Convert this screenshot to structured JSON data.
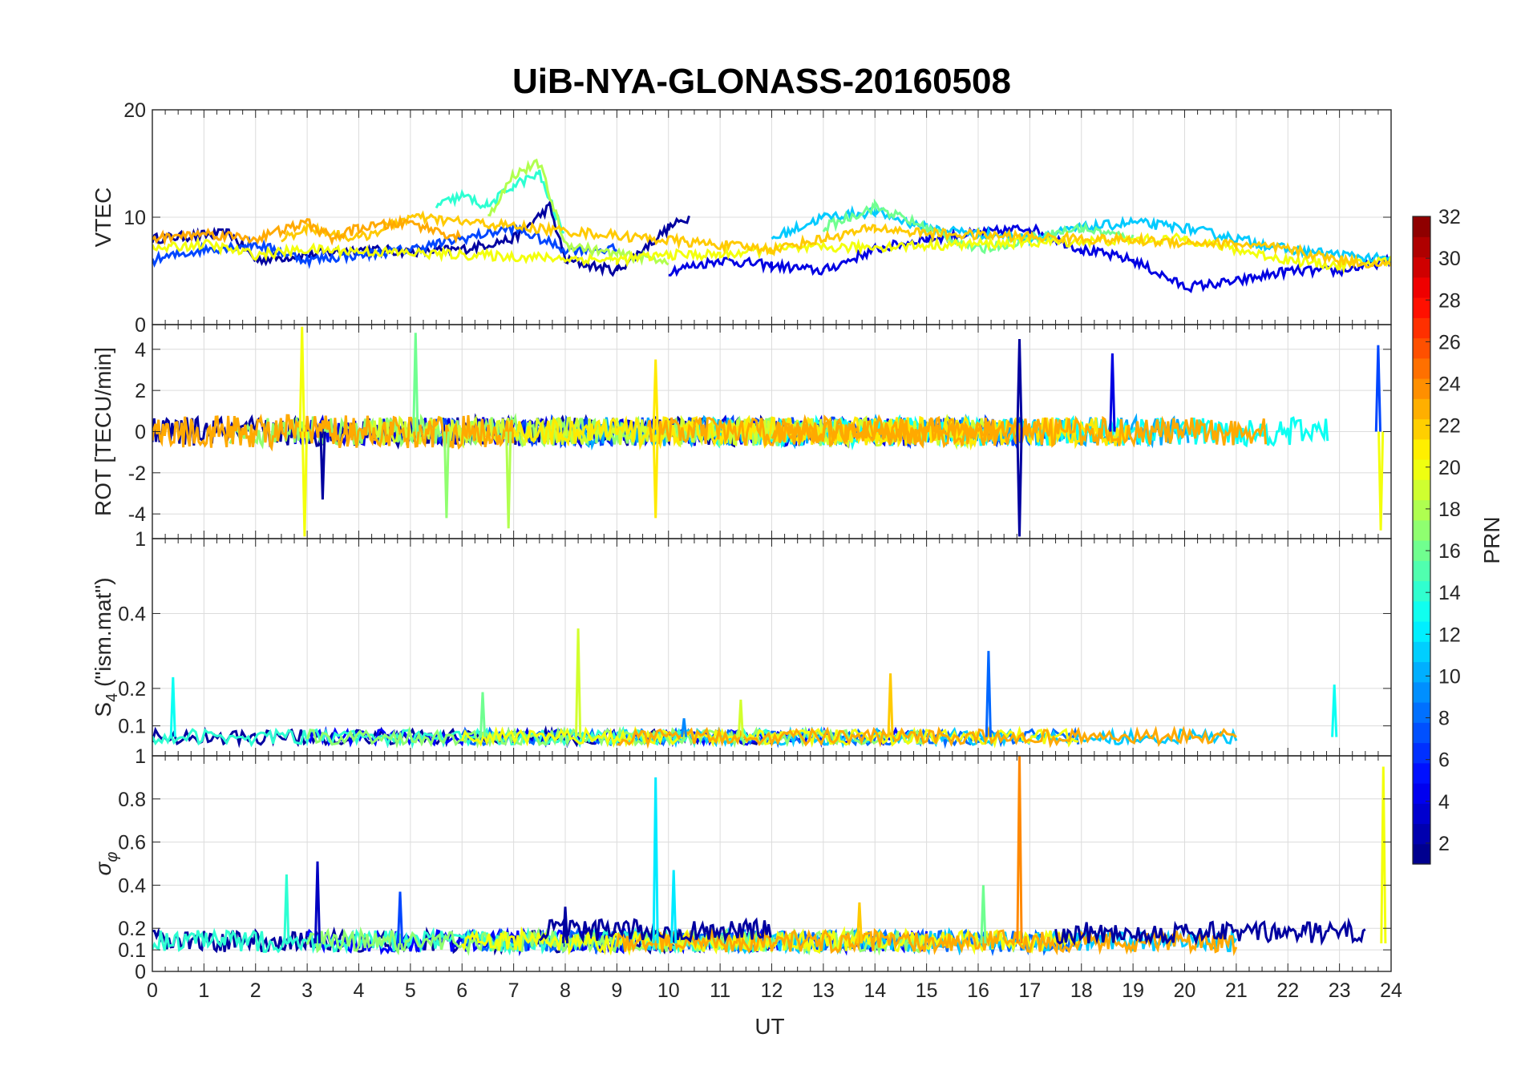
{
  "chart_data": {
    "type": "line",
    "title": "UiB-NYA-GLONASS-20160508",
    "xlabel": "UT",
    "x_ticks": [
      0,
      1,
      2,
      3,
      4,
      5,
      6,
      7,
      8,
      9,
      10,
      11,
      12,
      13,
      14,
      15,
      16,
      17,
      18,
      19,
      20,
      21,
      22,
      23,
      24
    ],
    "xlim": [
      0,
      24
    ],
    "grid": true,
    "colorbar": {
      "label": "PRN",
      "colormap": "jet",
      "range": [
        1,
        32
      ],
      "ticks": [
        2,
        4,
        6,
        8,
        10,
        12,
        14,
        16,
        18,
        20,
        22,
        24,
        26,
        28,
        30,
        32
      ]
    },
    "panels": [
      {
        "id": "vtec",
        "ylabel": "VTEC",
        "ylim": [
          0,
          20
        ],
        "yticks": [
          0,
          10,
          20
        ],
        "typical_range": [
          3,
          15
        ],
        "series": [
          {
            "prn": 2,
            "x": [
              0,
              1.5,
              2,
              3,
              4,
              5,
              6,
              7,
              7.7,
              8,
              9,
              10,
              10.4
            ],
            "y": [
              8,
              8.5,
              6,
              6.5,
              7,
              6.8,
              7,
              8,
              11,
              6,
              5,
              9,
              10
            ]
          },
          {
            "prn": 4,
            "x": [
              10,
              11,
              12,
              13,
              14,
              15,
              16,
              17,
              18,
              19,
              20,
              21,
              22,
              23,
              24
            ],
            "y": [
              5,
              6,
              5.5,
              5,
              7,
              8,
              8.5,
              9,
              7,
              6,
              3.5,
              4,
              5,
              5,
              6
            ]
          },
          {
            "prn": 7,
            "x": [
              0,
              1,
              2,
              3,
              4,
              5,
              6,
              7,
              8,
              9
            ],
            "y": [
              6,
              7,
              7.5,
              6,
              6.5,
              7,
              8,
              9,
              7,
              7
            ]
          },
          {
            "prn": 11,
            "x": [
              12,
              13,
              14,
              15,
              16,
              17,
              18,
              19,
              20,
              21,
              22,
              23,
              24
            ],
            "y": [
              8,
              10,
              10.5,
              9,
              8.5,
              8,
              9,
              9.5,
              9,
              8,
              7,
              6.5,
              6
            ]
          },
          {
            "prn": 14,
            "x": [
              5.5,
              6,
              6.5,
              7,
              7.5,
              8
            ],
            "y": [
              11,
              12,
              11,
              13,
              14,
              8
            ]
          },
          {
            "prn": 16,
            "x": [
              13,
              14,
              15,
              16,
              17,
              18,
              19
            ],
            "y": [
              9,
              11,
              9,
              7,
              8,
              9,
              8
            ]
          },
          {
            "prn": 18,
            "x": [
              6.5,
              7,
              7.5,
              7.7,
              8,
              9,
              10
            ],
            "y": [
              10,
              14,
              15,
              12,
              7.5,
              6.5,
              6
            ]
          },
          {
            "prn": 20,
            "x": [
              0,
              1,
              2,
              3,
              9,
              10,
              11,
              12,
              20,
              21,
              22,
              23,
              24
            ],
            "y": [
              7,
              7.5,
              6.5,
              7,
              6,
              6.5,
              6.5,
              7,
              8,
              7,
              6,
              5.5,
              6
            ]
          },
          {
            "prn": 22,
            "x": [
              2.5,
              3,
              4,
              5,
              12,
              13,
              14,
              15,
              21,
              22,
              23,
              24
            ],
            "y": [
              8,
              9,
              8,
              10,
              7,
              8,
              9,
              8.5,
              7.5,
              7,
              6,
              5.5
            ]
          },
          {
            "prn": 23,
            "x": [
              0,
              1,
              2,
              3,
              3.5,
              4,
              5,
              6
            ],
            "y": [
              8,
              8.5,
              8,
              9.5,
              8,
              9,
              9.5,
              8
            ]
          }
        ]
      },
      {
        "id": "rot",
        "ylabel": "ROT [TECU/min]",
        "ylim": [
          -5.2,
          5.2
        ],
        "yticks": [
          -4,
          -2,
          0,
          2,
          4
        ],
        "typical_range": [
          -1,
          1
        ],
        "spikes": [
          {
            "x": 2.9,
            "y": 5.1,
            "prn": 20
          },
          {
            "x": 2.95,
            "y": -5.1,
            "prn": 20
          },
          {
            "x": 3.3,
            "y": -3.3,
            "prn": 2
          },
          {
            "x": 5.1,
            "y": 4.8,
            "prn": 16
          },
          {
            "x": 5.7,
            "y": -4.2,
            "prn": 17
          },
          {
            "x": 6.9,
            "y": -4.7,
            "prn": 18
          },
          {
            "x": 9.75,
            "y": 3.5,
            "prn": 21
          },
          {
            "x": 9.75,
            "y": -4.2,
            "prn": 21
          },
          {
            "x": 16.8,
            "y": 4.5,
            "prn": 2
          },
          {
            "x": 16.8,
            "y": -5.1,
            "prn": 2
          },
          {
            "x": 18.6,
            "y": 3.8,
            "prn": 4
          },
          {
            "x": 23.75,
            "y": 4.2,
            "prn": 7
          },
          {
            "x": 23.8,
            "y": -4.8,
            "prn": 20
          }
        ]
      },
      {
        "id": "s4",
        "ylabel": "S4 (\"ism.mat\")",
        "ylabel_main": "S",
        "ylabel_sub": "4",
        "ylabel_rest": " (\"ism.mat\")",
        "ylim": [
          0.02,
          0.6
        ],
        "yticks": [
          0.1,
          0.2,
          0.4
        ],
        "top_tick": "1",
        "typical_range": [
          0.04,
          0.12
        ],
        "peaks": [
          {
            "x": 0.4,
            "y": 0.23,
            "prn": 13
          },
          {
            "x": 8.25,
            "y": 0.36,
            "prn": 19
          },
          {
            "x": 14.3,
            "y": 0.24,
            "prn": 22
          },
          {
            "x": 16.2,
            "y": 0.3,
            "prn": 8
          },
          {
            "x": 22.9,
            "y": 0.21,
            "prn": 13
          },
          {
            "x": 10.3,
            "y": 0.12,
            "prn": 9
          },
          {
            "x": 6.4,
            "y": 0.19,
            "prn": 16
          },
          {
            "x": 11.4,
            "y": 0.17,
            "prn": 19
          }
        ]
      },
      {
        "id": "sigma_phi",
        "ylabel": "σ φ",
        "ylabel_main": "σ",
        "ylabel_sub": "φ",
        "ylim": [
          0,
          1
        ],
        "yticks": [
          0,
          0.1,
          0.2,
          0.4,
          0.6,
          0.8,
          1
        ],
        "typical_range": [
          0.08,
          0.25
        ],
        "peaks": [
          {
            "x": 2.6,
            "y": 0.45,
            "prn": 14
          },
          {
            "x": 3.2,
            "y": 0.51,
            "prn": 3
          },
          {
            "x": 4.8,
            "y": 0.37,
            "prn": 7
          },
          {
            "x": 9.75,
            "y": 0.9,
            "prn": 12
          },
          {
            "x": 10.1,
            "y": 0.47,
            "prn": 12
          },
          {
            "x": 16.1,
            "y": 0.4,
            "prn": 16
          },
          {
            "x": 16.8,
            "y": 1.0,
            "prn": 24
          },
          {
            "x": 23.85,
            "y": 0.95,
            "prn": 20
          },
          {
            "x": 13.7,
            "y": 0.32,
            "prn": 22
          },
          {
            "x": 8.0,
            "y": 0.3,
            "prn": 2
          }
        ]
      }
    ]
  }
}
